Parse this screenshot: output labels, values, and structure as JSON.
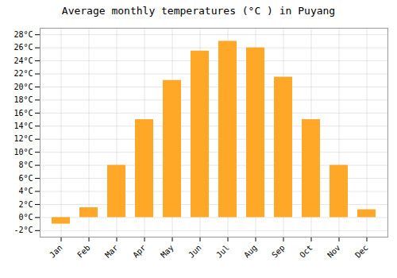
{
  "chart_data": {
    "type": "bar",
    "title": "Average monthly temperatures (°C ) in Puyang",
    "categories": [
      "Jan",
      "Feb",
      "Mar",
      "Apr",
      "May",
      "Jun",
      "Jul",
      "Aug",
      "Sep",
      "Oct",
      "Nov",
      "Dec"
    ],
    "values": [
      -1.0,
      1.5,
      8.0,
      15.0,
      21.0,
      25.5,
      27.0,
      26.0,
      21.5,
      15.0,
      8.0,
      1.2
    ],
    "color": "#FFA726",
    "ylim": [
      -3,
      29
    ],
    "yticks": [
      {
        "value": -2,
        "label": "-2°C"
      },
      {
        "value": 0,
        "label": "0°C"
      },
      {
        "value": 2,
        "label": "2°C"
      },
      {
        "value": 4,
        "label": "4°C"
      },
      {
        "value": 6,
        "label": "6°C"
      },
      {
        "value": 8,
        "label": "8°C"
      },
      {
        "value": 10,
        "label": "10°C"
      },
      {
        "value": 12,
        "label": "12°C"
      },
      {
        "value": 14,
        "label": "14°C"
      },
      {
        "value": 16,
        "label": "16°C"
      },
      {
        "value": 18,
        "label": "18°C"
      },
      {
        "value": 20,
        "label": "20°C"
      },
      {
        "value": 22,
        "label": "22°C"
      },
      {
        "value": 24,
        "label": "24°C"
      },
      {
        "value": 26,
        "label": "26°C"
      },
      {
        "value": 28,
        "label": "28°C"
      }
    ],
    "grid": true
  }
}
